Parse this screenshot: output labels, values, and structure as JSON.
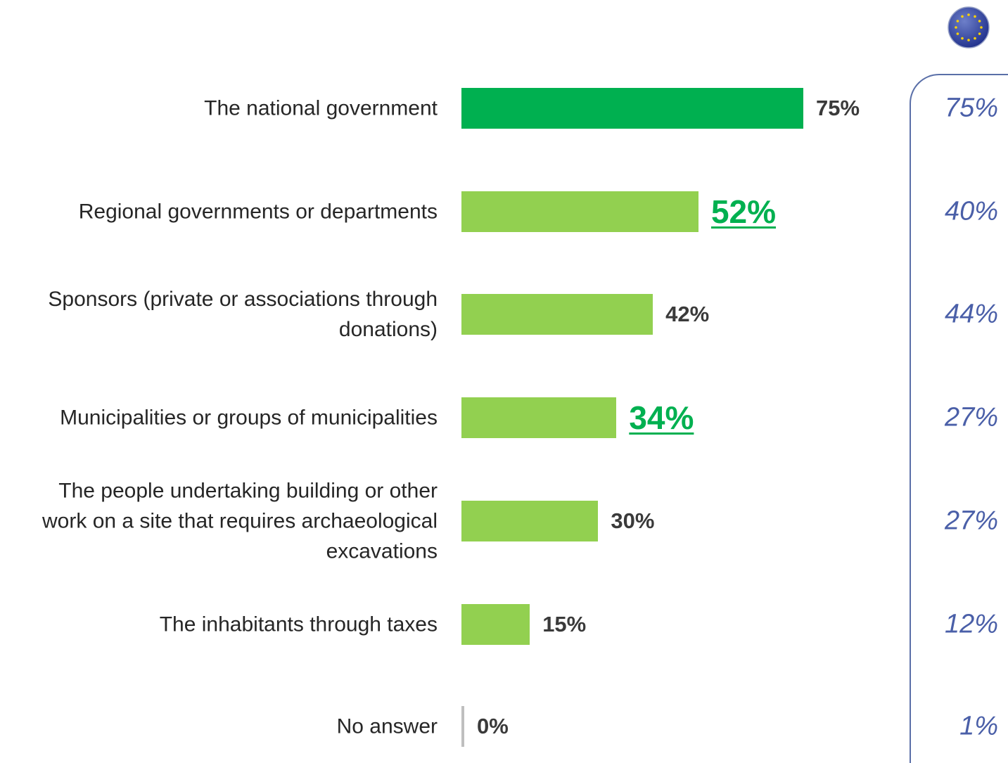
{
  "colors": {
    "highlight_bar": "#00b050",
    "bar": "#92d050",
    "eu_text": "#4a5fa8",
    "label_text": "#262626"
  },
  "icons": {
    "eu_flag": "eu-flag-icon"
  },
  "chart_data": {
    "type": "bar",
    "orientation": "horizontal",
    "categories": [
      "The national government",
      "Regional governments or departments",
      "Sponsors (private or associations through donations)",
      "Municipalities or groups of municipalities",
      "The people undertaking building or other work on a site that requires archaeological excavations",
      "The inhabitants through taxes",
      "No answer"
    ],
    "series": [
      {
        "values": [
          75,
          52,
          42,
          34,
          30,
          15,
          0
        ]
      },
      {
        "values": [
          75,
          40,
          44,
          27,
          27,
          12,
          1
        ]
      }
    ],
    "value_labels": [
      "75%",
      "52%",
      "42%",
      "34%",
      "30%",
      "15%",
      "0%"
    ],
    "eu_labels": [
      "75%",
      "40%",
      "44%",
      "27%",
      "27%",
      "12%",
      "1%"
    ],
    "highlighted": [
      false,
      true,
      false,
      true,
      false,
      false,
      false
    ],
    "xlim": [
      0,
      100
    ],
    "grid": false
  }
}
